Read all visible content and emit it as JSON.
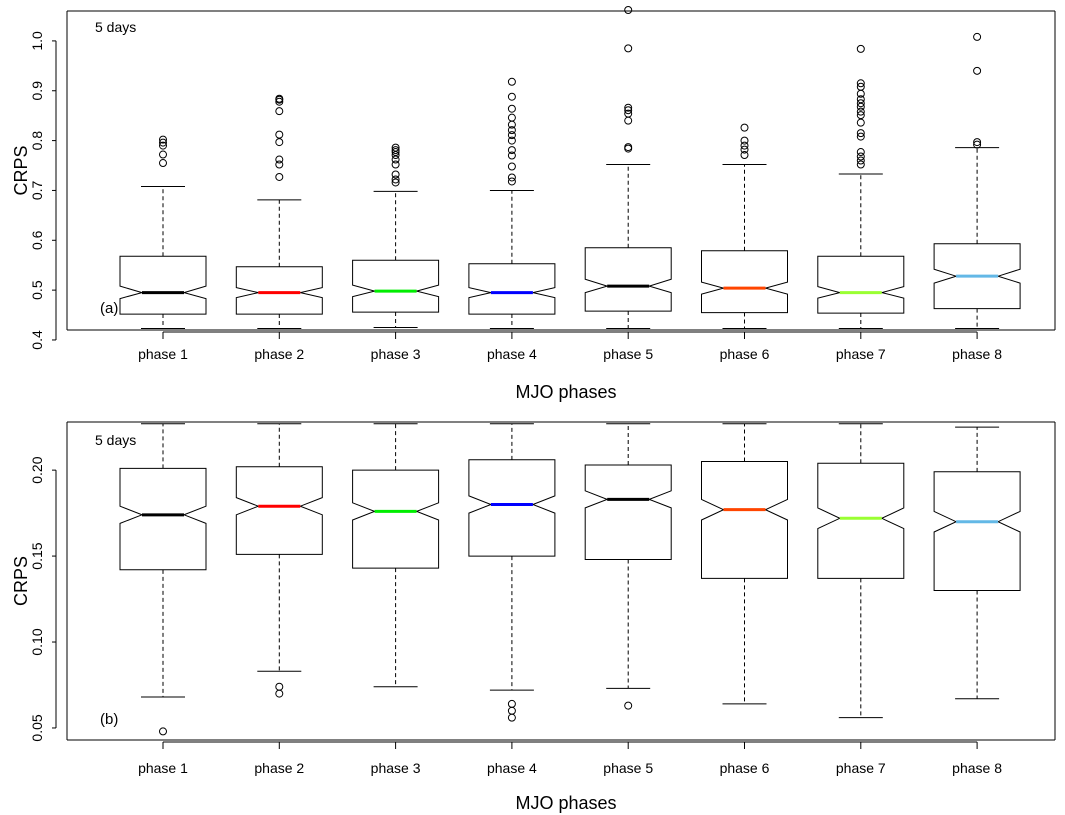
{
  "chart_data": [
    {
      "type": "boxplot",
      "panel_label": "(a)",
      "annotation": "5 days",
      "xlabel": "MJO phases",
      "ylabel": "CRPS",
      "categories": [
        "phase 1",
        "phase 2",
        "phase 3",
        "phase 4",
        "phase 5",
        "phase 6",
        "phase 7",
        "phase 8"
      ],
      "ylim": [
        0.42,
        1.06
      ],
      "yticks": [
        0.4,
        0.5,
        0.6,
        0.7,
        0.8,
        0.9,
        1.0
      ],
      "ytick_labels": [
        "0.4",
        "0.5",
        "0.6",
        "0.7",
        "0.8",
        "0.9",
        "1.0"
      ],
      "notched": true,
      "grid": false,
      "boxes": [
        {
          "whisker_low": 0.423,
          "q1": 0.452,
          "notch_low": 0.483,
          "median": 0.495,
          "notch_high": 0.508,
          "q3": 0.568,
          "whisker_high": 0.708,
          "outliers": [
            0.755,
            0.772,
            0.79,
            0.796,
            0.802
          ],
          "median_color": "#000000"
        },
        {
          "whisker_low": 0.423,
          "q1": 0.452,
          "notch_low": 0.485,
          "median": 0.495,
          "notch_high": 0.505,
          "q3": 0.547,
          "whisker_high": 0.681,
          "outliers": [
            0.727,
            0.752,
            0.762,
            0.797,
            0.812,
            0.859,
            0.878,
            0.882,
            0.884
          ],
          "median_color": "#ff0000"
        },
        {
          "whisker_low": 0.425,
          "q1": 0.456,
          "notch_low": 0.487,
          "median": 0.498,
          "notch_high": 0.51,
          "q3": 0.56,
          "whisker_high": 0.698,
          "outliers": [
            0.716,
            0.722,
            0.732,
            0.752,
            0.762,
            0.771,
            0.777,
            0.781,
            0.786
          ],
          "median_color": "#00ee00"
        },
        {
          "whisker_low": 0.423,
          "q1": 0.452,
          "notch_low": 0.485,
          "median": 0.495,
          "notch_high": 0.505,
          "q3": 0.553,
          "whisker_high": 0.7,
          "outliers": [
            0.718,
            0.726,
            0.748,
            0.77,
            0.781,
            0.8,
            0.811,
            0.821,
            0.832,
            0.846,
            0.864,
            0.888,
            0.918
          ],
          "median_color": "#0000ff"
        },
        {
          "whisker_low": 0.423,
          "q1": 0.458,
          "notch_low": 0.495,
          "median": 0.508,
          "notch_high": 0.522,
          "q3": 0.585,
          "whisker_high": 0.752,
          "outliers": [
            0.784,
            0.787,
            0.84,
            0.854,
            0.861,
            0.866,
            0.985,
            1.062
          ],
          "median_color": "#000000"
        },
        {
          "whisker_low": 0.423,
          "q1": 0.455,
          "notch_low": 0.492,
          "median": 0.504,
          "notch_high": 0.516,
          "q3": 0.579,
          "whisker_high": 0.752,
          "outliers": [
            0.771,
            0.782,
            0.79,
            0.8,
            0.826
          ],
          "median_color": "#ff4500"
        },
        {
          "whisker_low": 0.423,
          "q1": 0.454,
          "notch_low": 0.484,
          "median": 0.495,
          "notch_high": 0.507,
          "q3": 0.568,
          "whisker_high": 0.733,
          "outliers": [
            0.752,
            0.76,
            0.768,
            0.777,
            0.808,
            0.815,
            0.836,
            0.851,
            0.858,
            0.868,
            0.875,
            0.883,
            0.894,
            0.908,
            0.915,
            0.984
          ],
          "median_color": "#9aff32"
        },
        {
          "whisker_low": 0.423,
          "q1": 0.463,
          "notch_low": 0.514,
          "median": 0.528,
          "notch_high": 0.542,
          "q3": 0.593,
          "whisker_high": 0.786,
          "outliers": [
            0.792,
            0.797,
            0.94,
            1.008
          ],
          "median_color": "#63b8e6"
        }
      ]
    },
    {
      "type": "boxplot",
      "panel_label": "(b)",
      "annotation": "5 days",
      "xlabel": "MJO phases",
      "ylabel": "CRPS",
      "categories": [
        "phase 1",
        "phase 2",
        "phase 3",
        "phase 4",
        "phase 5",
        "phase 6",
        "phase 7",
        "phase 8"
      ],
      "ylim": [
        0.043,
        0.228
      ],
      "yticks": [
        0.05,
        0.1,
        0.15,
        0.2
      ],
      "ytick_labels": [
        "0.05",
        "0.10",
        "0.15",
        "0.20"
      ],
      "notched": true,
      "grid": false,
      "boxes": [
        {
          "whisker_low": 0.068,
          "q1": 0.142,
          "notch_low": 0.169,
          "median": 0.174,
          "notch_high": 0.179,
          "q3": 0.201,
          "whisker_high": 0.227,
          "outliers": [
            0.048
          ],
          "median_color": "#000000"
        },
        {
          "whisker_low": 0.083,
          "q1": 0.151,
          "notch_low": 0.174,
          "median": 0.179,
          "notch_high": 0.184,
          "q3": 0.202,
          "whisker_high": 0.227,
          "outliers": [
            0.07,
            0.074
          ],
          "median_color": "#ff0000"
        },
        {
          "whisker_low": 0.074,
          "q1": 0.143,
          "notch_low": 0.171,
          "median": 0.176,
          "notch_high": 0.181,
          "q3": 0.2,
          "whisker_high": 0.227,
          "outliers": [],
          "median_color": "#00ee00"
        },
        {
          "whisker_low": 0.072,
          "q1": 0.15,
          "notch_low": 0.175,
          "median": 0.18,
          "notch_high": 0.185,
          "q3": 0.206,
          "whisker_high": 0.227,
          "outliers": [
            0.056,
            0.06,
            0.064
          ],
          "median_color": "#0000ff"
        },
        {
          "whisker_low": 0.073,
          "q1": 0.148,
          "notch_low": 0.178,
          "median": 0.183,
          "notch_high": 0.188,
          "q3": 0.203,
          "whisker_high": 0.227,
          "outliers": [
            0.063
          ],
          "median_color": "#000000"
        },
        {
          "whisker_low": 0.064,
          "q1": 0.137,
          "notch_low": 0.171,
          "median": 0.177,
          "notch_high": 0.183,
          "q3": 0.205,
          "whisker_high": 0.227,
          "outliers": [],
          "median_color": "#ff4500"
        },
        {
          "whisker_low": 0.056,
          "q1": 0.137,
          "notch_low": 0.166,
          "median": 0.172,
          "notch_high": 0.178,
          "q3": 0.204,
          "whisker_high": 0.227,
          "outliers": [],
          "median_color": "#9aff32"
        },
        {
          "whisker_low": 0.067,
          "q1": 0.13,
          "notch_low": 0.164,
          "median": 0.17,
          "notch_high": 0.176,
          "q3": 0.199,
          "whisker_high": 0.225,
          "outliers": [],
          "median_color": "#63b8e6"
        }
      ]
    }
  ]
}
